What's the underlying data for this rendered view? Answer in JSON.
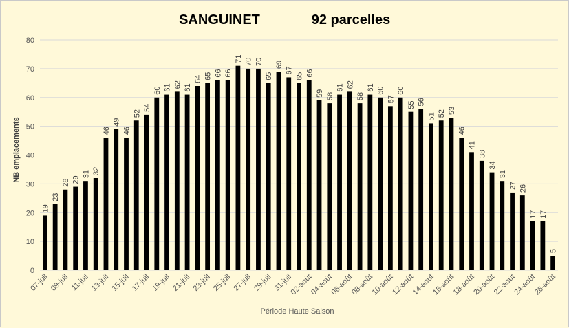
{
  "chart_data": {
    "type": "bar",
    "title": "SANGUINET",
    "subtitle": "92 parcelles",
    "xlabel": "Période Haute Saison",
    "ylabel": "NB emplacements",
    "ylim": [
      0,
      80
    ],
    "yticks": [
      0,
      10,
      20,
      30,
      40,
      50,
      60,
      70,
      80
    ],
    "grid": true,
    "legend": "none",
    "bar_color": "#000000",
    "categories": [
      "07-juil",
      "08-juil",
      "09-juil",
      "10-juil",
      "11-juil",
      "12-juil",
      "13-juil",
      "14-juil",
      "15-juil",
      "16-juil",
      "17-juil",
      "18-juil",
      "19-juil",
      "20-juil",
      "21-juil",
      "22-juil",
      "23-juil",
      "24-juil",
      "25-juil",
      "26-juil",
      "27-juil",
      "28-juil",
      "29-juil",
      "30-juil",
      "31-juil",
      "01-août",
      "02-août",
      "03-août",
      "04-août",
      "05-août",
      "06-août",
      "07-août",
      "08-août",
      "09-août",
      "10-août",
      "11-août",
      "12-août",
      "13-août",
      "14-août",
      "15-août",
      "16-août",
      "17-août",
      "18-août",
      "19-août",
      "20-août",
      "21-août",
      "22-août",
      "23-août",
      "24-août",
      "25-août",
      "26-août"
    ],
    "x_tick_labels": [
      "07-juil",
      "09-juil",
      "11-juil",
      "13-juil",
      "15-juil",
      "17-juil",
      "19-juil",
      "21-juil",
      "23-juil",
      "25-juil",
      "27-juil",
      "29-juil",
      "31-juil",
      "02-août",
      "04-août",
      "06-août",
      "08-août",
      "10-août",
      "12-août",
      "14-août",
      "16-août",
      "18-août",
      "20-août",
      "22-août",
      "24-août",
      "26-août"
    ],
    "values": [
      19,
      23,
      28,
      29,
      31,
      32,
      46,
      49,
      46,
      52,
      54,
      60,
      61,
      62,
      61,
      64,
      65,
      66,
      66,
      71,
      70,
      70,
      65,
      69,
      67,
      65,
      66,
      59,
      58,
      61,
      62,
      58,
      61,
      60,
      57,
      60,
      55,
      56,
      51,
      52,
      53,
      46,
      41,
      38,
      34,
      31,
      27,
      26,
      17,
      17,
      5
    ]
  }
}
